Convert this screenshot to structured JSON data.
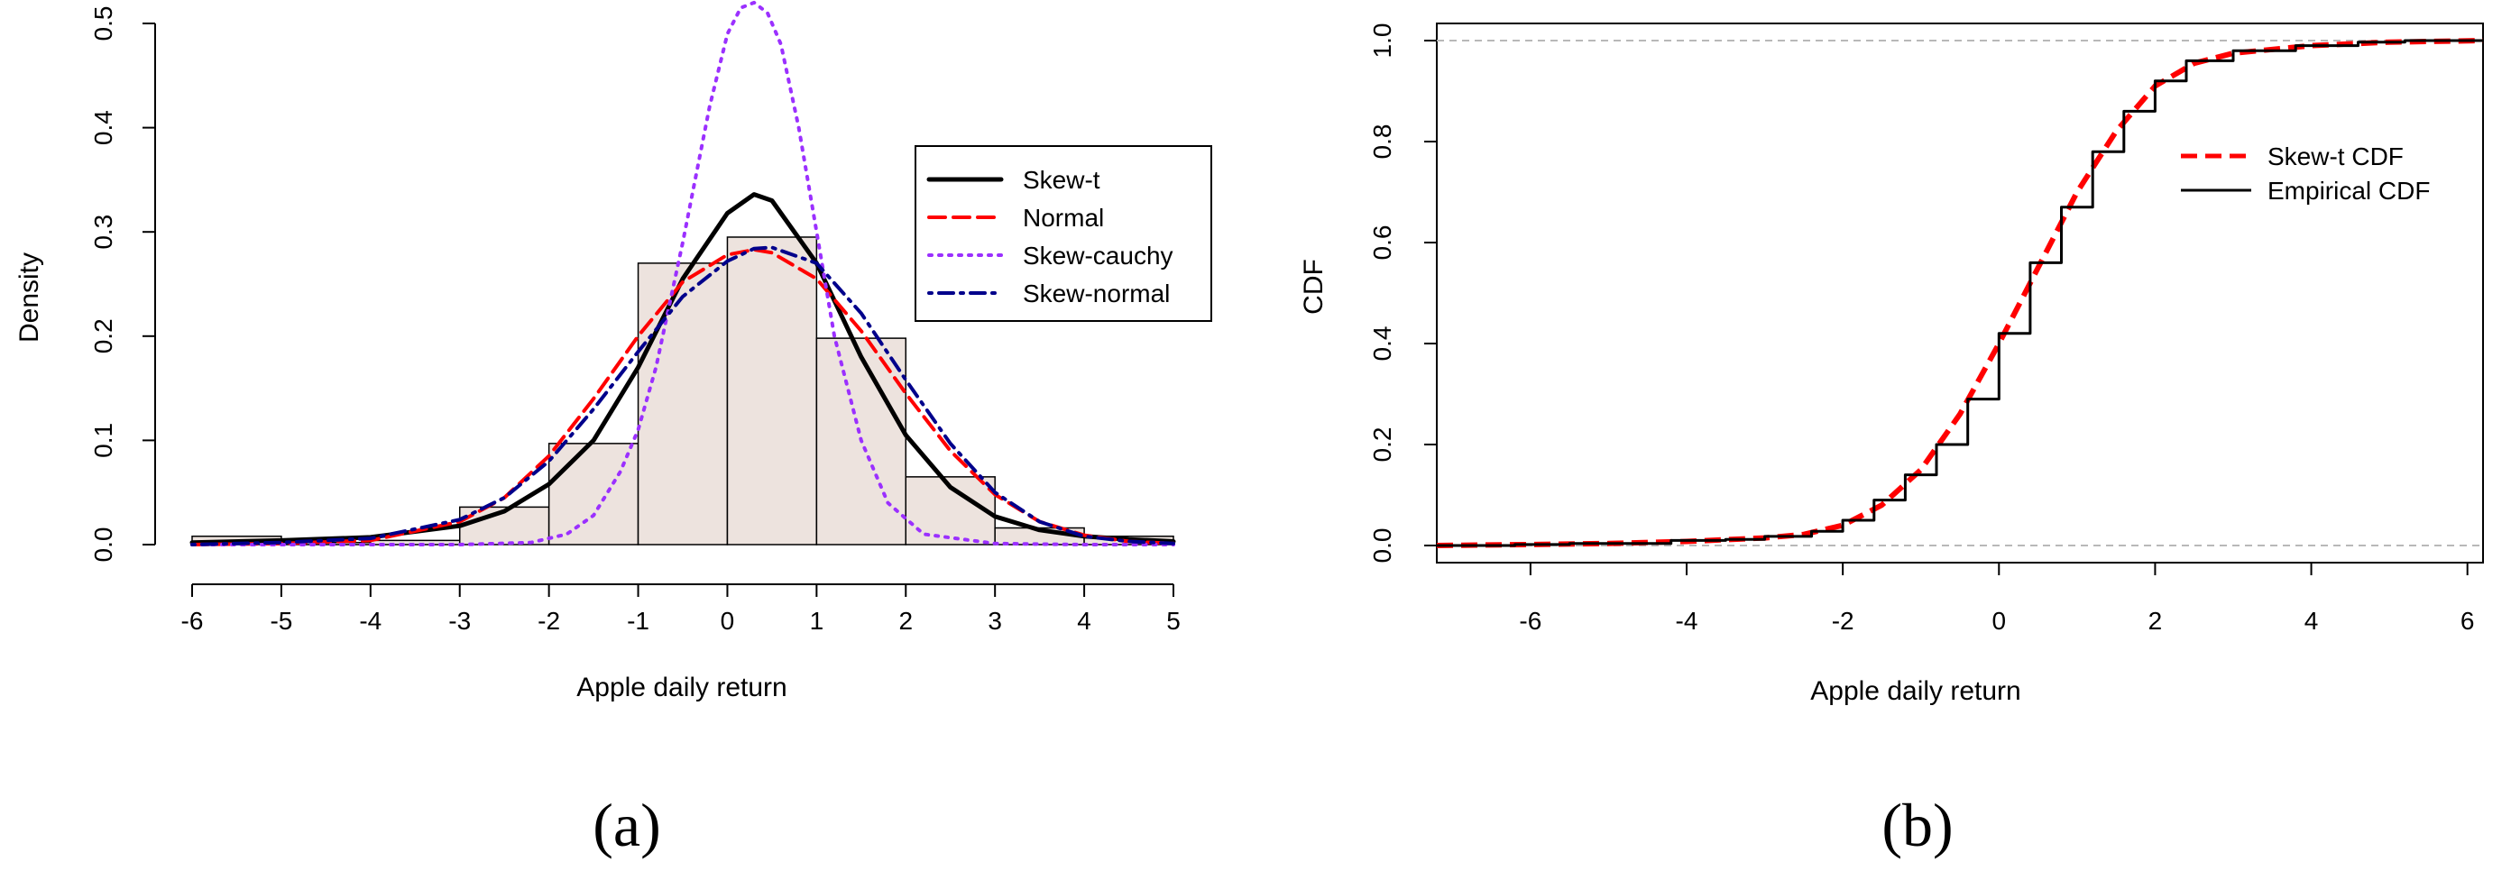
{
  "chart_data": [
    {
      "type": "histogram",
      "panel_label": "(a)",
      "xlabel": "Apple daily return",
      "ylabel": "Density",
      "xlim": [
        -6,
        5
      ],
      "ylim": [
        0,
        0.5
      ],
      "x_ticks": [
        "-6",
        "-5",
        "-4",
        "-3",
        "-2",
        "-1",
        "0",
        "1",
        "2",
        "3",
        "4",
        "5"
      ],
      "y_ticks": [
        "0.0",
        "0.1",
        "0.2",
        "0.3",
        "0.4",
        "0.5"
      ],
      "bins": [
        -6,
        -5,
        -4,
        -3,
        -2,
        -1,
        0,
        1,
        2,
        3,
        4,
        5
      ],
      "densities": [
        0.008,
        0.002,
        0.004,
        0.036,
        0.097,
        0.27,
        0.295,
        0.198,
        0.065,
        0.016,
        0.008
      ],
      "bar_fill": "#ede3de",
      "curves": [
        {
          "name": "Skew-t",
          "color": "#000000",
          "style": "solid",
          "x": [
            -6,
            -5,
            -4,
            -3,
            -2.5,
            -2,
            -1.5,
            -1,
            -0.5,
            0,
            0.3,
            0.5,
            1,
            1.5,
            2,
            2.5,
            3,
            3.5,
            4,
            4.5,
            5
          ],
          "y": [
            0.002,
            0.004,
            0.007,
            0.018,
            0.032,
            0.058,
            0.1,
            0.17,
            0.255,
            0.318,
            0.336,
            0.33,
            0.27,
            0.18,
            0.105,
            0.055,
            0.027,
            0.014,
            0.008,
            0.005,
            0.003
          ]
        },
        {
          "name": "Normal",
          "color": "#ff0000",
          "style": "dashed",
          "x": [
            -6,
            -5,
            -4,
            -3,
            -2.5,
            -2,
            -1.5,
            -1,
            -0.5,
            0,
            0.3,
            0.5,
            1,
            1.5,
            2,
            2.5,
            3,
            3.5,
            4,
            4.5,
            5
          ],
          "y": [
            0.0,
            0.001,
            0.004,
            0.022,
            0.045,
            0.085,
            0.14,
            0.2,
            0.252,
            0.278,
            0.283,
            0.28,
            0.255,
            0.205,
            0.145,
            0.09,
            0.048,
            0.022,
            0.009,
            0.003,
            0.001
          ]
        },
        {
          "name": "Skew-cauchy",
          "color": "#9b30ff",
          "style": "dotted",
          "x": [
            -6,
            -4,
            -3,
            -2.2,
            -1.8,
            -1.5,
            -1.2,
            -1,
            -0.8,
            -0.5,
            -0.2,
            0,
            0.15,
            0.3,
            0.45,
            0.6,
            0.8,
            1,
            1.2,
            1.5,
            1.8,
            2.2,
            3,
            4,
            5
          ],
          "y": [
            0.0,
            0.0,
            0.0,
            0.002,
            0.01,
            0.028,
            0.07,
            0.11,
            0.17,
            0.29,
            0.42,
            0.49,
            0.515,
            0.52,
            0.51,
            0.48,
            0.4,
            0.3,
            0.2,
            0.1,
            0.04,
            0.01,
            0.001,
            0.0,
            0.0
          ]
        },
        {
          "name": "Skew-normal",
          "color": "#00008b",
          "style": "dotdash",
          "x": [
            -6,
            -5,
            -4,
            -3,
            -2.5,
            -2,
            -1.5,
            -1,
            -0.5,
            0,
            0.3,
            0.5,
            1,
            1.5,
            2,
            2.5,
            3,
            3.5,
            4,
            4.5,
            5
          ],
          "y": [
            0.0,
            0.002,
            0.006,
            0.024,
            0.045,
            0.08,
            0.13,
            0.185,
            0.238,
            0.272,
            0.284,
            0.285,
            0.27,
            0.222,
            0.158,
            0.097,
            0.05,
            0.022,
            0.008,
            0.003,
            0.001
          ]
        }
      ],
      "legend": {
        "position": "top-right",
        "entries": [
          {
            "label": "Skew-t",
            "color": "#000000",
            "style": "solid"
          },
          {
            "label": "Normal",
            "color": "#ff0000",
            "style": "dashed"
          },
          {
            "label": "Skew-cauchy",
            "color": "#9b30ff",
            "style": "dotted"
          },
          {
            "label": "Skew-normal",
            "color": "#00008b",
            "style": "dotdash"
          }
        ]
      }
    },
    {
      "type": "line",
      "panel_label": "(b)",
      "xlabel": "Apple daily return",
      "ylabel": "CDF",
      "xlim": [
        -7.2,
        6.2
      ],
      "ylim": [
        0,
        1
      ],
      "x_ticks": [
        "-6",
        "-4",
        "-2",
        "0",
        "2",
        "4",
        "6"
      ],
      "y_ticks": [
        "0.0",
        "0.2",
        "0.4",
        "0.6",
        "0.8",
        "1.0"
      ],
      "reference_lines": [
        0,
        1
      ],
      "series": [
        {
          "name": "Skew-t CDF",
          "color": "#ff0000",
          "style": "dashed",
          "x": [
            -7.2,
            -6,
            -5,
            -4,
            -3,
            -2.5,
            -2,
            -1.5,
            -1,
            -0.5,
            0,
            0.5,
            1,
            1.5,
            2,
            2.5,
            3,
            4,
            5,
            6.2
          ],
          "y": [
            0.0,
            0.002,
            0.004,
            0.008,
            0.015,
            0.022,
            0.04,
            0.08,
            0.15,
            0.26,
            0.4,
            0.55,
            0.7,
            0.82,
            0.91,
            0.955,
            0.975,
            0.99,
            0.997,
            1.0
          ]
        },
        {
          "name": "Empirical CDF",
          "color": "#000000",
          "style": "step",
          "x": [
            -7.2,
            -6.2,
            -5.5,
            -4.2,
            -3.5,
            -3,
            -2.4,
            -2,
            -1.6,
            -1.2,
            -0.8,
            -0.4,
            0,
            0.4,
            0.8,
            1.2,
            1.6,
            2,
            2.4,
            3,
            3.8,
            4.6,
            5.2,
            6.2
          ],
          "y": [
            0.0,
            0.002,
            0.004,
            0.01,
            0.012,
            0.018,
            0.028,
            0.05,
            0.09,
            0.14,
            0.2,
            0.29,
            0.42,
            0.56,
            0.67,
            0.78,
            0.86,
            0.92,
            0.96,
            0.98,
            0.99,
            0.997,
            1.0,
            1.0
          ]
        }
      ],
      "legend": {
        "position": "right",
        "entries": [
          {
            "label": "Skew-t CDF",
            "color": "#ff0000",
            "style": "dashed"
          },
          {
            "label": "Empirical CDF",
            "color": "#000000",
            "style": "solid"
          }
        ]
      }
    }
  ]
}
